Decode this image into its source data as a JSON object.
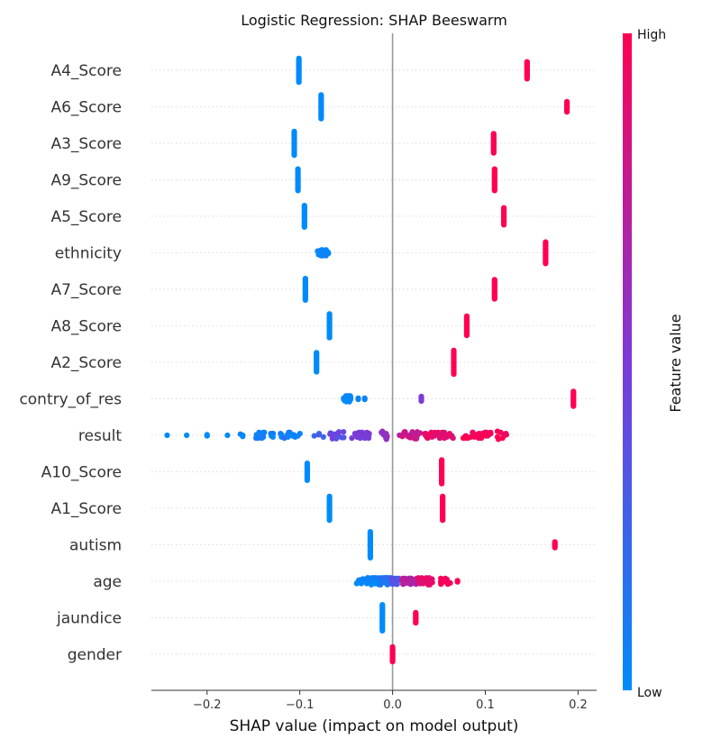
{
  "chart_data": {
    "type": "scatter",
    "subtype": "shap-beeswarm",
    "title": "Logistic Regression: SHAP Beeswarm",
    "xlabel": "SHAP value (impact on model output)",
    "xlim": [
      -0.26,
      0.22
    ],
    "xticks": [
      -0.2,
      -0.1,
      0.0,
      0.1,
      0.2
    ],
    "xtick_labels": [
      "−0.2",
      "−0.1",
      "0.0",
      "0.1",
      "0.2"
    ],
    "zero_line": 0.0,
    "colorbar": {
      "title": "Feature value",
      "high_label": "High",
      "low_label": "Low",
      "low_color": "#008bfb",
      "high_color": "#ff0052"
    },
    "features": [
      {
        "name": "A4_Score",
        "clusters": [
          {
            "x": -0.101,
            "f": 0.0,
            "n": 22,
            "spread": 0.0
          },
          {
            "x": 0.145,
            "f": 1.0,
            "n": 16,
            "spread": 0.0
          }
        ]
      },
      {
        "name": "A6_Score",
        "clusters": [
          {
            "x": -0.077,
            "f": 0.0,
            "n": 22,
            "spread": 0.0
          },
          {
            "x": 0.188,
            "f": 1.0,
            "n": 10,
            "spread": 0.0
          }
        ]
      },
      {
        "name": "A3_Score",
        "clusters": [
          {
            "x": -0.106,
            "f": 0.0,
            "n": 22,
            "spread": 0.0
          },
          {
            "x": 0.109,
            "f": 1.0,
            "n": 18,
            "spread": 0.0
          }
        ]
      },
      {
        "name": "A9_Score",
        "clusters": [
          {
            "x": -0.102,
            "f": 0.0,
            "n": 20,
            "spread": 0.0
          },
          {
            "x": 0.11,
            "f": 1.0,
            "n": 20,
            "spread": 0.0
          }
        ]
      },
      {
        "name": "A5_Score",
        "clusters": [
          {
            "x": -0.095,
            "f": 0.0,
            "n": 20,
            "spread": 0.0
          },
          {
            "x": 0.12,
            "f": 1.0,
            "n": 16,
            "spread": 0.0
          }
        ]
      },
      {
        "name": "ethnicity",
        "clusters": [
          {
            "x": -0.075,
            "f": 0.0,
            "n": 24,
            "spread": 0.006
          },
          {
            "x": 0.165,
            "f": 1.0,
            "n": 20,
            "spread": 0.0
          }
        ]
      },
      {
        "name": "A7_Score",
        "clusters": [
          {
            "x": -0.094,
            "f": 0.0,
            "n": 20,
            "spread": 0.0
          },
          {
            "x": 0.11,
            "f": 1.0,
            "n": 18,
            "spread": 0.0
          }
        ]
      },
      {
        "name": "A8_Score",
        "clusters": [
          {
            "x": -0.068,
            "f": 0.0,
            "n": 22,
            "spread": 0.0
          },
          {
            "x": 0.08,
            "f": 1.0,
            "n": 18,
            "spread": 0.0
          }
        ]
      },
      {
        "name": "A2_Score",
        "clusters": [
          {
            "x": -0.082,
            "f": 0.0,
            "n": 18,
            "spread": 0.0
          },
          {
            "x": 0.066,
            "f": 1.0,
            "n": 22,
            "spread": 0.0
          }
        ]
      },
      {
        "name": "contry_of_res",
        "clusters": [
          {
            "x": -0.049,
            "f": 0.0,
            "n": 34,
            "spread": 0.004
          },
          {
            "x": -0.037,
            "f": 0.05,
            "n": 2,
            "spread": 0.0
          },
          {
            "x": -0.03,
            "f": 0.05,
            "n": 2,
            "spread": 0.0
          },
          {
            "x": 0.031,
            "f": 0.5,
            "n": 5,
            "spread": 0.0
          },
          {
            "x": 0.195,
            "f": 1.0,
            "n": 14,
            "spread": 0.0
          }
        ]
      },
      {
        "name": "result",
        "clusters": [
          {
            "x": -0.243,
            "f": 0.0,
            "n": 1,
            "spread": 0.0
          },
          {
            "x": -0.222,
            "f": 0.0,
            "n": 1,
            "spread": 0.0
          },
          {
            "x": -0.2,
            "f": 0.0,
            "n": 2,
            "spread": 0.0
          },
          {
            "x": -0.178,
            "f": 0.0,
            "n": 1,
            "spread": 0.0
          },
          {
            "x": -0.16,
            "f": 0.02,
            "n": 3,
            "spread": 0.005
          },
          {
            "x": -0.138,
            "f": 0.05,
            "n": 18,
            "spread": 0.011
          },
          {
            "x": -0.11,
            "f": 0.1,
            "n": 16,
            "spread": 0.012
          },
          {
            "x": -0.08,
            "f": 0.25,
            "n": 4,
            "spread": 0.008
          },
          {
            "x": -0.06,
            "f": 0.4,
            "n": 14,
            "spread": 0.008
          },
          {
            "x": -0.035,
            "f": 0.5,
            "n": 24,
            "spread": 0.01
          },
          {
            "x": -0.01,
            "f": 0.6,
            "n": 8,
            "spread": 0.006
          },
          {
            "x": 0.018,
            "f": 0.78,
            "n": 26,
            "spread": 0.014
          },
          {
            "x": 0.05,
            "f": 0.9,
            "n": 34,
            "spread": 0.016
          },
          {
            "x": 0.09,
            "f": 0.97,
            "n": 30,
            "spread": 0.016
          },
          {
            "x": 0.118,
            "f": 1.0,
            "n": 8,
            "spread": 0.006
          }
        ]
      },
      {
        "name": "A10_Score",
        "clusters": [
          {
            "x": -0.092,
            "f": 0.0,
            "n": 16,
            "spread": 0.0
          },
          {
            "x": 0.053,
            "f": 1.0,
            "n": 22,
            "spread": 0.0
          }
        ]
      },
      {
        "name": "A1_Score",
        "clusters": [
          {
            "x": -0.068,
            "f": 0.0,
            "n": 22,
            "spread": 0.0
          },
          {
            "x": 0.054,
            "f": 1.0,
            "n": 22,
            "spread": 0.0
          }
        ]
      },
      {
        "name": "autism",
        "clusters": [
          {
            "x": -0.024,
            "f": 0.0,
            "n": 24,
            "spread": 0.0
          },
          {
            "x": 0.175,
            "f": 1.0,
            "n": 6,
            "spread": 0.0
          }
        ]
      },
      {
        "name": "age",
        "clusters": [
          {
            "x": -0.035,
            "f": 0.0,
            "n": 10,
            "spread": 0.004
          },
          {
            "x": -0.02,
            "f": 0.05,
            "n": 50,
            "spread": 0.008
          },
          {
            "x": -0.007,
            "f": 0.15,
            "n": 50,
            "spread": 0.006
          },
          {
            "x": 0.003,
            "f": 0.35,
            "n": 30,
            "spread": 0.004
          },
          {
            "x": 0.018,
            "f": 0.7,
            "n": 40,
            "spread": 0.008
          },
          {
            "x": 0.035,
            "f": 0.9,
            "n": 26,
            "spread": 0.008
          },
          {
            "x": 0.055,
            "f": 1.0,
            "n": 12,
            "spread": 0.008
          },
          {
            "x": 0.07,
            "f": 1.0,
            "n": 2,
            "spread": 0.0
          }
        ]
      },
      {
        "name": "jaundice",
        "clusters": [
          {
            "x": -0.011,
            "f": 0.0,
            "n": 24,
            "spread": 0.0
          },
          {
            "x": 0.025,
            "f": 1.0,
            "n": 10,
            "spread": 0.0
          }
        ]
      },
      {
        "name": "gender",
        "clusters": [
          {
            "x": 0.0,
            "f": 0.0,
            "n": 10,
            "spread": 0.0
          },
          {
            "x": 0.0,
            "f": 1.0,
            "n": 14,
            "spread": 0.0
          }
        ]
      }
    ]
  }
}
